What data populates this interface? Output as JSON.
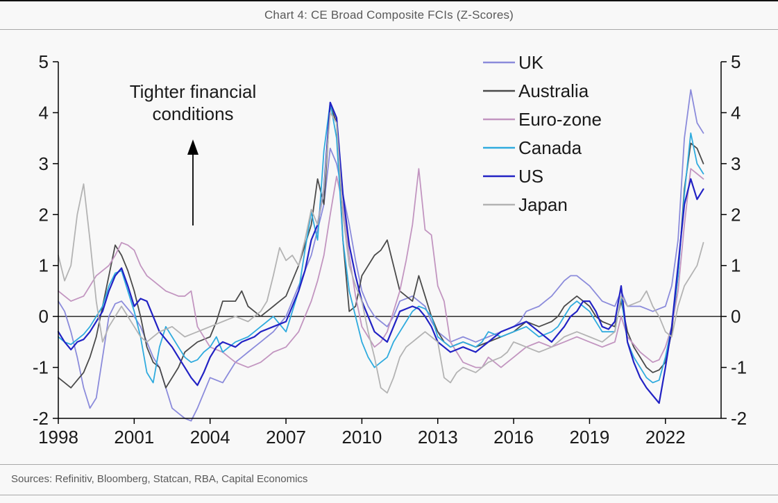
{
  "page": {
    "title": "Chart 4: CE Broad Composite FCIs (Z-Scores)",
    "sources": "Sources: Refinitiv, Bloomberg, Statcan, RBA, Capital Economics",
    "background": "#f8f8f8",
    "rule_color": "#a8a8a8",
    "text_color": "#595959"
  },
  "chart_data": {
    "type": "line",
    "title": "Chart 4: CE Broad Composite FCIs (Z-Scores)",
    "xlabel": "",
    "ylabel": "",
    "xlim": [
      1998,
      2024.2
    ],
    "ylim": [
      -2,
      5
    ],
    "xticks": [
      1998,
      2001,
      2004,
      2007,
      2010,
      2013,
      2016,
      2019,
      2022
    ],
    "yticks": [
      -2,
      -1,
      0,
      1,
      2,
      3,
      4,
      5
    ],
    "grid": false,
    "zero_line": true,
    "legend_position": "top-right-inside",
    "annotation": {
      "line1": "Tighter financial",
      "line2": "conditions",
      "arrow": "up"
    },
    "x": [
      1998,
      1998.25,
      1998.5,
      1998.75,
      1999,
      1999.25,
      1999.5,
      1999.75,
      2000,
      2000.25,
      2000.5,
      2000.75,
      2001,
      2001.25,
      2001.5,
      2001.75,
      2002,
      2002.25,
      2002.5,
      2002.75,
      2003,
      2003.25,
      2003.5,
      2003.75,
      2004,
      2004.25,
      2004.5,
      2004.75,
      2005,
      2005.25,
      2005.5,
      2005.75,
      2006,
      2006.25,
      2006.5,
      2006.75,
      2007,
      2007.25,
      2007.5,
      2007.75,
      2008,
      2008.25,
      2008.5,
      2008.75,
      2009,
      2009.25,
      2009.5,
      2009.75,
      2010,
      2010.25,
      2010.5,
      2010.75,
      2011,
      2011.25,
      2011.5,
      2011.75,
      2012,
      2012.25,
      2012.5,
      2012.75,
      2013,
      2013.25,
      2013.5,
      2013.75,
      2014,
      2014.25,
      2014.5,
      2014.75,
      2015,
      2015.25,
      2015.5,
      2015.75,
      2016,
      2016.25,
      2016.5,
      2016.75,
      2017,
      2017.25,
      2017.5,
      2017.75,
      2018,
      2018.25,
      2018.5,
      2018.75,
      2019,
      2019.25,
      2019.5,
      2019.75,
      2020,
      2020.25,
      2020.5,
      2020.75,
      2021,
      2021.25,
      2021.5,
      2021.75,
      2022,
      2022.25,
      2022.5,
      2022.75,
      2023,
      2023.25,
      2023.5
    ],
    "series": [
      {
        "name": "UK",
        "color": "#8b8bdb",
        "width": 1.8,
        "values": [
          0.3,
          0.1,
          -0.3,
          -0.8,
          -1.4,
          -1.8,
          -1.6,
          -0.8,
          0.0,
          0.25,
          0.3,
          0.15,
          0.0,
          -0.2,
          -0.5,
          -0.8,
          -1.0,
          -1.4,
          -1.8,
          -1.9,
          -2.0,
          -2.05,
          -1.8,
          -1.5,
          -1.2,
          -1.25,
          -1.3,
          -1.1,
          -0.9,
          -0.8,
          -0.7,
          -0.6,
          -0.5,
          -0.4,
          -0.3,
          -0.15,
          0.0,
          0.3,
          0.6,
          0.9,
          1.2,
          1.7,
          2.2,
          3.3,
          3.0,
          2.4,
          1.8,
          1.1,
          0.5,
          0.2,
          0.0,
          -0.1,
          -0.2,
          0.0,
          0.3,
          0.35,
          0.4,
          0.3,
          0.2,
          -0.1,
          -0.3,
          -0.4,
          -0.5,
          -0.45,
          -0.4,
          -0.45,
          -0.5,
          -0.45,
          -0.4,
          -0.35,
          -0.3,
          -0.25,
          -0.2,
          -0.1,
          0.1,
          0.15,
          0.2,
          0.3,
          0.4,
          0.55,
          0.7,
          0.8,
          0.8,
          0.7,
          0.6,
          0.45,
          0.3,
          0.25,
          0.2,
          0.5,
          0.2,
          0.2,
          0.2,
          0.15,
          0.1,
          0.15,
          0.2,
          0.6,
          1.5,
          3.5,
          4.45,
          3.8,
          3.6
        ]
      },
      {
        "name": "Australia",
        "color": "#4a4a4a",
        "width": 1.8,
        "values": [
          -1.2,
          -1.3,
          -1.4,
          -1.25,
          -1.1,
          -0.8,
          -0.4,
          0.2,
          0.8,
          1.4,
          1.2,
          0.9,
          0.5,
          0.0,
          -0.6,
          -0.9,
          -1.0,
          -1.4,
          -1.2,
          -1.0,
          -0.7,
          -0.6,
          -0.5,
          -0.45,
          -0.4,
          -0.1,
          0.3,
          0.3,
          0.3,
          0.5,
          0.2,
          0.1,
          0.0,
          0.1,
          0.2,
          0.3,
          0.4,
          0.7,
          1.0,
          1.4,
          1.8,
          2.7,
          2.2,
          4.15,
          3.8,
          1.5,
          0.1,
          0.2,
          0.8,
          1.0,
          1.2,
          1.3,
          1.5,
          1.0,
          0.5,
          0.4,
          0.3,
          0.8,
          0.4,
          0.0,
          -0.3,
          -0.5,
          -0.6,
          -0.55,
          -0.5,
          -0.55,
          -0.6,
          -0.55,
          -0.5,
          -0.45,
          -0.4,
          -0.35,
          -0.3,
          -0.2,
          -0.1,
          -0.15,
          -0.2,
          -0.15,
          -0.1,
          0.0,
          0.2,
          0.3,
          0.4,
          0.3,
          0.2,
          0.0,
          -0.1,
          -0.15,
          -0.2,
          0.3,
          -0.3,
          -0.6,
          -0.8,
          -1.0,
          -1.1,
          -1.05,
          -0.9,
          -0.3,
          0.8,
          2.5,
          3.4,
          3.3,
          3.0
        ]
      },
      {
        "name": "Euro-zone",
        "color": "#c295c0",
        "width": 1.8,
        "values": [
          0.5,
          0.4,
          0.3,
          0.35,
          0.4,
          0.6,
          0.8,
          0.9,
          1.0,
          1.2,
          1.45,
          1.4,
          1.3,
          1.0,
          0.8,
          0.7,
          0.6,
          0.5,
          0.45,
          0.4,
          0.4,
          0.5,
          -0.2,
          -0.4,
          -0.6,
          -0.65,
          -0.7,
          -0.8,
          -0.9,
          -0.95,
          -1.0,
          -0.95,
          -0.9,
          -0.8,
          -0.7,
          -0.65,
          -0.6,
          -0.45,
          -0.3,
          0.0,
          0.3,
          0.7,
          1.2,
          2.0,
          2.75,
          2.2,
          1.2,
          0.4,
          -0.2,
          -0.4,
          -0.6,
          -0.5,
          -0.3,
          0.1,
          0.5,
          1.1,
          1.8,
          2.9,
          1.7,
          1.6,
          0.6,
          0.3,
          -0.5,
          -0.7,
          -0.9,
          -0.95,
          -1.0,
          -1.0,
          -0.8,
          -0.9,
          -1.0,
          -0.9,
          -0.8,
          -0.7,
          -0.6,
          -0.55,
          -0.5,
          -0.55,
          -0.6,
          -0.55,
          -0.5,
          -0.45,
          -0.4,
          -0.45,
          -0.5,
          -0.55,
          -0.6,
          -0.55,
          -0.5,
          0.0,
          -0.4,
          -0.55,
          -0.7,
          -0.8,
          -0.9,
          -0.85,
          -0.6,
          -0.2,
          0.5,
          1.8,
          2.9,
          2.8,
          2.7
        ]
      },
      {
        "name": "Canada",
        "color": "#2fabde",
        "width": 1.8,
        "values": [
          -0.4,
          -0.5,
          -0.55,
          -0.45,
          -0.35,
          -0.2,
          0.0,
          0.2,
          0.6,
          0.85,
          0.9,
          0.5,
          0.1,
          -0.4,
          -1.1,
          -1.3,
          -0.6,
          -0.2,
          -0.4,
          -0.6,
          -0.8,
          -0.9,
          -0.85,
          -0.7,
          -0.6,
          -0.4,
          -0.7,
          -0.6,
          -0.5,
          -0.45,
          -0.4,
          -0.3,
          -0.2,
          -0.1,
          0.0,
          -0.15,
          -0.3,
          0.1,
          0.5,
          1.3,
          2.05,
          1.5,
          3.25,
          4.2,
          3.5,
          1.5,
          0.5,
          0.0,
          -0.5,
          -0.8,
          -1.0,
          -0.9,
          -0.8,
          -0.5,
          -0.3,
          -0.1,
          0.1,
          0.2,
          0.15,
          0.0,
          -0.4,
          -0.5,
          -0.6,
          -0.55,
          -0.5,
          -0.55,
          -0.6,
          -0.5,
          -0.3,
          -0.35,
          -0.4,
          -0.35,
          -0.3,
          -0.25,
          -0.2,
          -0.3,
          -0.4,
          -0.35,
          -0.3,
          -0.2,
          0.0,
          0.2,
          0.3,
          0.2,
          0.1,
          -0.1,
          -0.3,
          -0.3,
          -0.3,
          0.4,
          -0.5,
          -0.8,
          -1.0,
          -1.2,
          -1.3,
          -1.25,
          -0.8,
          -0.2,
          0.8,
          2.4,
          3.6,
          3.0,
          2.8
        ]
      },
      {
        "name": "US",
        "color": "#2222c4",
        "width": 2.2,
        "values": [
          -0.3,
          -0.5,
          -0.65,
          -0.5,
          -0.45,
          -0.3,
          -0.1,
          0.1,
          0.5,
          0.8,
          0.95,
          0.6,
          0.2,
          0.35,
          0.3,
          0.0,
          -0.3,
          -0.45,
          -0.6,
          -0.8,
          -1.0,
          -1.2,
          -1.35,
          -1.1,
          -0.8,
          -0.6,
          -0.5,
          -0.55,
          -0.6,
          -0.5,
          -0.45,
          -0.4,
          -0.3,
          -0.25,
          -0.2,
          -0.15,
          -0.1,
          0.2,
          0.5,
          0.9,
          1.5,
          1.8,
          2.5,
          4.2,
          3.9,
          2.4,
          1.4,
          0.8,
          0.3,
          0.0,
          -0.3,
          -0.4,
          -0.5,
          -0.2,
          0.1,
          0.15,
          0.2,
          0.15,
          0.0,
          -0.2,
          -0.5,
          -0.6,
          -0.7,
          -0.65,
          -0.6,
          -0.65,
          -0.7,
          -0.6,
          -0.5,
          -0.4,
          -0.3,
          -0.25,
          -0.2,
          -0.15,
          -0.1,
          -0.2,
          -0.3,
          -0.4,
          -0.5,
          -0.35,
          -0.2,
          0.0,
          0.1,
          0.3,
          0.3,
          0.1,
          -0.2,
          -0.25,
          -0.1,
          0.6,
          -0.5,
          -0.9,
          -1.2,
          -1.4,
          -1.55,
          -1.7,
          -1.0,
          -0.2,
          1.0,
          2.2,
          2.7,
          2.3,
          2.5
        ]
      },
      {
        "name": "Japan",
        "color": "#b3b3b3",
        "width": 1.8,
        "values": [
          1.2,
          0.7,
          1.0,
          2.0,
          2.6,
          1.5,
          0.3,
          -0.5,
          -0.2,
          0.0,
          0.2,
          0.0,
          -0.2,
          -0.4,
          -0.5,
          -0.4,
          -0.3,
          -0.25,
          -0.2,
          -0.3,
          -0.4,
          -0.35,
          -0.3,
          -0.25,
          -0.2,
          -0.15,
          -0.1,
          -0.05,
          0.0,
          -0.05,
          -0.1,
          0.0,
          0.1,
          0.3,
          0.8,
          1.35,
          1.1,
          1.2,
          1.0,
          1.5,
          2.1,
          1.8,
          2.5,
          4.0,
          3.8,
          2.0,
          1.0,
          0.6,
          0.3,
          -0.3,
          -0.8,
          -1.4,
          -1.5,
          -1.2,
          -0.8,
          -0.6,
          -0.5,
          -0.4,
          -0.3,
          -0.4,
          -0.5,
          -1.2,
          -1.3,
          -1.1,
          -1.0,
          -1.05,
          -1.1,
          -1.0,
          -0.9,
          -0.85,
          -0.8,
          -0.7,
          -0.5,
          -0.55,
          -0.6,
          -0.65,
          -0.7,
          -0.65,
          -0.6,
          -0.5,
          -0.4,
          -0.35,
          -0.3,
          -0.35,
          -0.4,
          -0.45,
          -0.5,
          -0.4,
          -0.3,
          0.4,
          0.2,
          0.25,
          0.3,
          0.5,
          0.2,
          0.0,
          -0.3,
          -0.4,
          0.2,
          0.6,
          0.8,
          1.0,
          1.45
        ]
      }
    ]
  }
}
